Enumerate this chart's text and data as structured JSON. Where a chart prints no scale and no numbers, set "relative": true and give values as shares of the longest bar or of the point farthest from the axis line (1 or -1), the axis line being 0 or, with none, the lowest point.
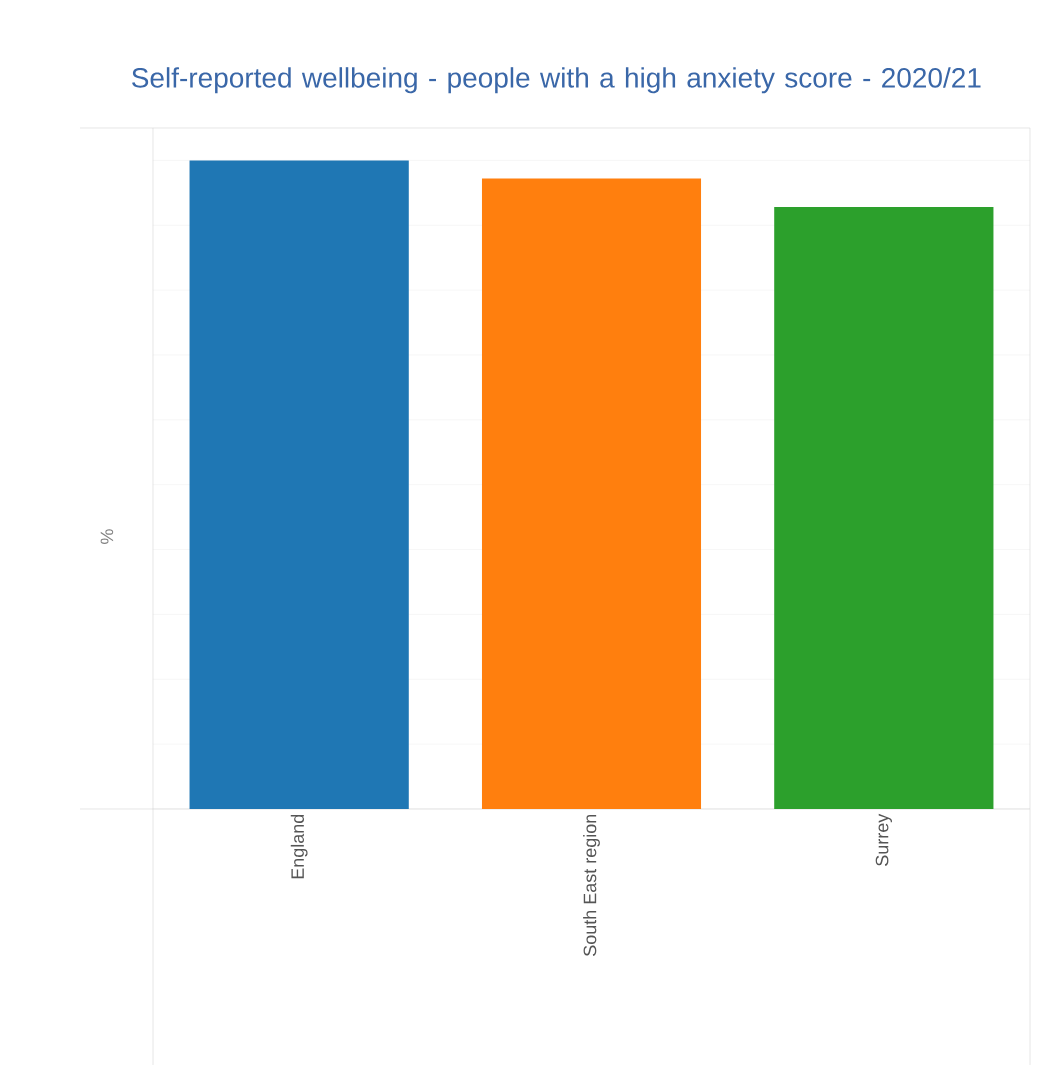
{
  "chart_data": {
    "type": "bar",
    "title": "Self-reported wellbeing - people with a high anxiety score - 2020/21",
    "ylabel": "%",
    "categories": [
      "England",
      "South East region",
      "Surrey"
    ],
    "values": [
      1,
      0.972,
      0.928
    ],
    "colors": [
      "#1f77b4",
      "#ff7f0e",
      "#2ca02c"
    ],
    "relative": true,
    "grid": "y"
  }
}
